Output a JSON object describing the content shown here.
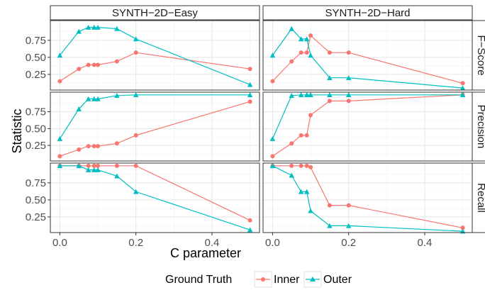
{
  "chart_data": {
    "type": "line",
    "xlabel": "C parameter",
    "ylabel": "Statistic",
    "xlim": [
      -0.025,
      0.525
    ],
    "ylim": [
      0.02,
      1.04
    ],
    "x_ticks": [
      "0.0",
      "0.2",
      "0.4"
    ],
    "x_tick_values": [
      0,
      0.2,
      0.4
    ],
    "y_ticks": [
      "0.25",
      "0.50",
      "0.75"
    ],
    "y_tick_values": [
      0.25,
      0.5,
      0.75
    ],
    "grid": true,
    "columns": [
      "SYNTH−2D−Easy",
      "SYNTH−2D−Hard"
    ],
    "rows": [
      "F−Score",
      "Precision",
      "Recall"
    ],
    "legend": {
      "title": "Ground Truth",
      "position": "bottom",
      "entries": [
        "Inner",
        "Outer"
      ]
    },
    "series_colors": {
      "Inner": "#F8766D",
      "Outer": "#00BFC4"
    },
    "x": [
      0,
      0.05,
      0.075,
      0.09,
      0.1,
      0.15,
      0.2,
      0.5
    ],
    "panels": [
      {
        "row": 0,
        "col": 0,
        "series": [
          {
            "name": "Inner",
            "values": [
              0.15,
              0.33,
              0.39,
              0.39,
              0.39,
              0.44,
              0.57,
              0.33
            ]
          },
          {
            "name": "Outer",
            "values": [
              0.53,
              0.88,
              0.94,
              0.94,
              0.94,
              0.92,
              0.77,
              0.1
            ]
          }
        ]
      },
      {
        "row": 0,
        "col": 1,
        "x": [
          0,
          0.05,
          0.075,
          0.09,
          0.1,
          0.15,
          0.2,
          0.5
        ],
        "series": [
          {
            "name": "Inner",
            "values": [
              0.15,
              0.44,
              0.57,
              0.57,
              0.82,
              0.57,
              0.57,
              0.12
            ]
          },
          {
            "name": "Outer",
            "values": [
              0.53,
              0.92,
              0.77,
              0.77,
              0.53,
              0.2,
              0.2,
              0.05
            ]
          }
        ]
      },
      {
        "row": 1,
        "col": 0,
        "series": [
          {
            "name": "Inner",
            "values": [
              0.09,
              0.19,
              0.24,
              0.24,
              0.24,
              0.28,
              0.4,
              0.9
            ]
          },
          {
            "name": "Outer",
            "values": [
              0.35,
              0.79,
              0.94,
              0.94,
              0.94,
              0.99,
              1.0,
              1.0
            ]
          }
        ]
      },
      {
        "row": 1,
        "col": 1,
        "series": [
          {
            "name": "Inner",
            "values": [
              0.09,
              0.28,
              0.4,
              0.4,
              0.7,
              0.91,
              0.91,
              1.0
            ]
          },
          {
            "name": "Outer",
            "values": [
              0.35,
              0.99,
              1.0,
              1.0,
              1.0,
              1.0,
              1.0,
              1.0
            ]
          }
        ]
      },
      {
        "row": 2,
        "col": 0,
        "series": [
          {
            "name": "Inner",
            "values": [
              1.0,
              1.0,
              1.0,
              1.0,
              1.0,
              1.0,
              1.0,
              0.2
            ]
          },
          {
            "name": "Outer",
            "values": [
              1.0,
              1.0,
              0.94,
              0.94,
              0.94,
              0.85,
              0.62,
              0.06
            ]
          }
        ]
      },
      {
        "row": 2,
        "col": 1,
        "series": [
          {
            "name": "Inner",
            "values": [
              1.0,
              1.0,
              1.0,
              1.0,
              0.98,
              0.42,
              0.42,
              0.09
            ]
          },
          {
            "name": "Outer",
            "values": [
              1.0,
              0.86,
              0.62,
              0.62,
              0.34,
              0.12,
              0.12,
              0.04
            ]
          }
        ]
      }
    ]
  }
}
